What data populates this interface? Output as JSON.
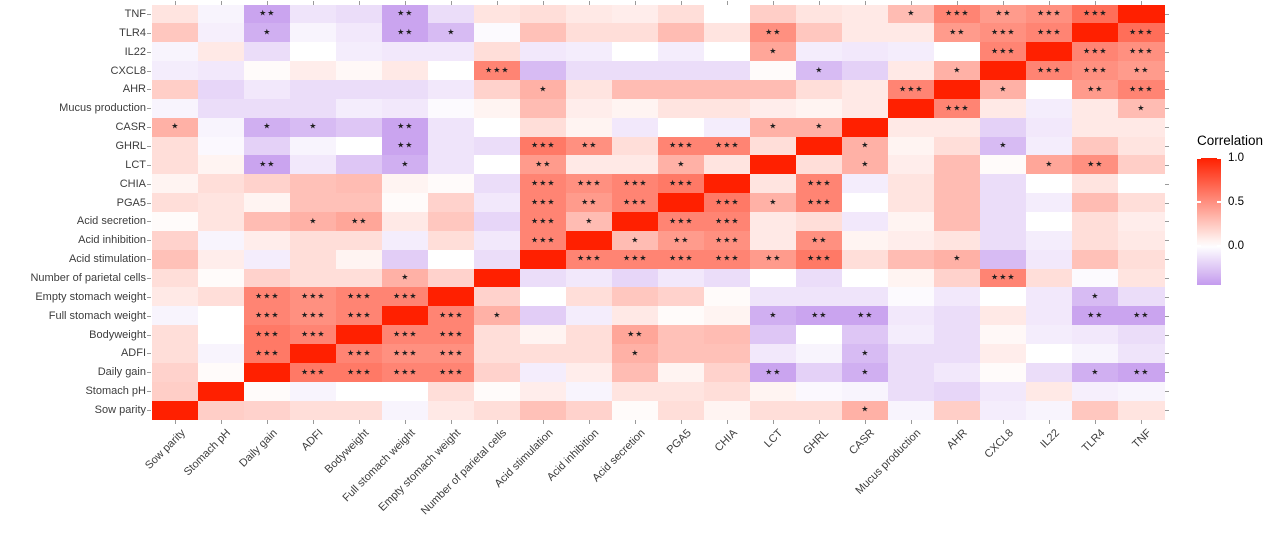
{
  "legend": {
    "title": "Correlation",
    "tick_labels": [
      "1.0",
      "0.5",
      "0.0"
    ],
    "tick_values": [
      1.0,
      0.5,
      0.0
    ],
    "max_value": 1.0,
    "min_value": -0.44
  },
  "colors": {
    "high": "#FF2000",
    "mid": "#FFFFFF",
    "low": "#7A1BD8",
    "axis_text": "#3d3d3d",
    "axis_tick": "#9a9a9a",
    "star": "#1f1f1f",
    "background": "#ffffff"
  },
  "chart_data": {
    "type": "heatmap",
    "title": "",
    "xlabel": "",
    "ylabel": "",
    "legend_position": "right",
    "grid": false,
    "star_glyph": "★",
    "variables": [
      "Sow parity",
      "Stomach pH",
      "Daily gain",
      "ADFI",
      "Bodyweight",
      "Full stomach weight",
      "Empty stomach weight",
      "Number of parietal cells",
      "Acid stimulation",
      "Acid inhibition",
      "Acid secretion",
      "PGA5",
      "CHIA",
      "LCT",
      "GHRL",
      "CASR",
      "Mucus production",
      "AHR",
      "CXCL8",
      "IL22",
      "TLR4",
      "TNF"
    ],
    "y_order_top_to_bottom": [
      "TNF",
      "TLR4",
      "IL22",
      "CXCL8",
      "AHR",
      "Mucus production",
      "CASR",
      "GHRL",
      "LCT",
      "CHIA",
      "PGA5",
      "Acid secretion",
      "Acid inhibition",
      "Acid stimulation",
      "Number of parietal cells",
      "Empty stomach weight",
      "Full stomach weight",
      "Bodyweight",
      "ADFI",
      "Daily gain",
      "Stomach pH",
      "Sow parity"
    ],
    "matrix": [
      [
        1,
        0.22,
        0.2,
        0.15,
        0.15,
        -0.05,
        0.1,
        0.15,
        0.28,
        0.2,
        0.02,
        0.15,
        0.05,
        0.15,
        0.15,
        0.35,
        -0.05,
        0.22,
        -0.08,
        -0.05,
        0.25,
        0.12
      ],
      [
        0.22,
        1,
        0.02,
        -0.05,
        0,
        0,
        0.15,
        0.02,
        0.08,
        -0.05,
        0.12,
        0.12,
        0.15,
        0.05,
        -0.03,
        -0.05,
        -0.15,
        -0.18,
        -0.1,
        0.1,
        -0.07,
        -0.05
      ],
      [
        0.2,
        0.02,
        1,
        0.6,
        0.6,
        0.55,
        0.55,
        0.2,
        -0.08,
        0.08,
        0.3,
        0.05,
        0.2,
        -0.4,
        -0.2,
        -0.35,
        -0.15,
        -0.1,
        0.02,
        -0.15,
        -0.35,
        -0.4
      ],
      [
        0.15,
        -0.05,
        0.6,
        1,
        0.55,
        0.5,
        0.5,
        0.15,
        0.15,
        0.15,
        0.35,
        0.28,
        0.28,
        -0.1,
        -0.05,
        -0.3,
        -0.15,
        -0.15,
        0.08,
        0,
        -0.05,
        -0.12
      ],
      [
        0.15,
        0,
        0.6,
        0.55,
        1,
        0.55,
        0.55,
        0.15,
        0.05,
        0.15,
        0.4,
        0.28,
        0.3,
        -0.25,
        0,
        -0.25,
        -0.08,
        -0.15,
        0.03,
        -0.08,
        -0.1,
        -0.15
      ],
      [
        -0.05,
        0,
        0.55,
        0.5,
        0.55,
        1,
        0.55,
        0.35,
        -0.22,
        -0.08,
        0.1,
        0.02,
        0.05,
        -0.35,
        -0.4,
        -0.4,
        -0.1,
        -0.15,
        0.1,
        -0.1,
        -0.4,
        -0.4
      ],
      [
        0.1,
        0.15,
        0.55,
        0.5,
        0.55,
        0.55,
        1,
        0.2,
        0,
        0.15,
        0.25,
        0.2,
        0.02,
        -0.12,
        -0.12,
        -0.12,
        -0.02,
        -0.1,
        0,
        -0.1,
        -0.3,
        -0.15
      ],
      [
        0.15,
        0.02,
        0.2,
        0.15,
        0.15,
        0.35,
        0.2,
        1,
        -0.15,
        -0.1,
        -0.18,
        -0.1,
        -0.15,
        0,
        -0.15,
        0,
        0.05,
        0.2,
        0.55,
        0.15,
        -0.02,
        0.12
      ],
      [
        0.28,
        0.08,
        -0.08,
        0.15,
        0.05,
        -0.22,
        0,
        -0.15,
        1,
        0.55,
        0.55,
        0.55,
        0.55,
        0.45,
        0.6,
        0.15,
        0.3,
        0.35,
        -0.3,
        -0.1,
        0.28,
        0.15
      ],
      [
        0.2,
        -0.05,
        0.08,
        0.15,
        0.15,
        -0.08,
        0.15,
        -0.1,
        0.55,
        1,
        0.3,
        0.45,
        0.5,
        0.1,
        0.5,
        0.05,
        0.08,
        0.12,
        -0.15,
        -0.08,
        0.15,
        0.1
      ],
      [
        0.02,
        0.12,
        0.3,
        0.35,
        0.4,
        0.1,
        0.25,
        -0.18,
        0.55,
        0.3,
        1,
        0.55,
        0.55,
        0.1,
        0.15,
        -0.1,
        0.05,
        0.3,
        -0.15,
        0,
        0.15,
        0.08
      ],
      [
        0.15,
        0.12,
        0.05,
        0.28,
        0.28,
        0.02,
        0.2,
        -0.1,
        0.55,
        0.45,
        0.55,
        1,
        0.6,
        0.35,
        0.55,
        0,
        0.12,
        0.3,
        -0.15,
        -0.08,
        0.3,
        0.15
      ],
      [
        0.05,
        0.15,
        0.2,
        0.28,
        0.3,
        0.05,
        0.02,
        -0.15,
        0.55,
        0.5,
        0.55,
        0.6,
        1,
        0.12,
        0.55,
        -0.08,
        0.12,
        0.3,
        -0.15,
        0,
        0.12,
        0
      ],
      [
        0.15,
        0.05,
        -0.4,
        -0.1,
        -0.25,
        -0.35,
        -0.12,
        0,
        0.45,
        0.1,
        0.1,
        0.35,
        0.12,
        1,
        0.15,
        0.35,
        0.08,
        0.3,
        0.02,
        0.4,
        0.5,
        0.22
      ],
      [
        0.15,
        -0.03,
        -0.2,
        -0.05,
        0,
        -0.4,
        -0.12,
        -0.15,
        0.6,
        0.5,
        0.15,
        0.55,
        0.55,
        0.15,
        1,
        0.35,
        0.05,
        0.15,
        -0.3,
        -0.08,
        0.25,
        0.12
      ],
      [
        0.35,
        -0.05,
        -0.35,
        -0.3,
        -0.25,
        -0.4,
        -0.12,
        0,
        0.15,
        0.05,
        -0.1,
        0,
        -0.08,
        0.35,
        0.35,
        1,
        0.1,
        0.1,
        -0.2,
        -0.1,
        0.1,
        0.1
      ],
      [
        -0.05,
        -0.15,
        -0.15,
        -0.15,
        -0.08,
        -0.1,
        -0.02,
        0.05,
        0.3,
        0.08,
        0.05,
        0.12,
        0.12,
        0.08,
        0.05,
        0.1,
        1,
        0.55,
        0.1,
        -0.08,
        0.1,
        0.3
      ],
      [
        0.22,
        -0.18,
        -0.1,
        -0.15,
        -0.15,
        -0.15,
        -0.1,
        0.2,
        0.35,
        0.12,
        0.3,
        0.3,
        0.3,
        0.3,
        0.15,
        0.1,
        0.55,
        1,
        0.35,
        0,
        0.45,
        0.55
      ],
      [
        -0.08,
        -0.1,
        0.02,
        0.08,
        0.03,
        0.1,
        0,
        0.55,
        -0.3,
        -0.15,
        -0.15,
        -0.15,
        -0.15,
        0.02,
        -0.3,
        -0.2,
        0.1,
        0.35,
        1,
        0.55,
        0.5,
        0.45
      ],
      [
        -0.05,
        0.1,
        -0.15,
        0,
        -0.08,
        -0.1,
        -0.1,
        0.15,
        -0.1,
        -0.08,
        0,
        -0.08,
        0,
        0.4,
        -0.08,
        -0.1,
        -0.08,
        0,
        0.55,
        1,
        0.55,
        0.5
      ],
      [
        0.25,
        -0.07,
        -0.35,
        -0.05,
        -0.1,
        -0.4,
        -0.3,
        -0.02,
        0.28,
        0.15,
        0.15,
        0.3,
        0.12,
        0.5,
        0.25,
        0.1,
        0.1,
        0.45,
        0.5,
        0.55,
        1,
        0.65
      ],
      [
        0.12,
        -0.05,
        -0.4,
        -0.12,
        -0.15,
        -0.4,
        -0.15,
        0.12,
        0.15,
        0.1,
        0.08,
        0.15,
        0,
        0.22,
        0.12,
        0.1,
        0.3,
        0.55,
        0.45,
        0.5,
        0.65,
        1
      ]
    ],
    "significance": [
      [
        "",
        "",
        "",
        "",
        "",
        "",
        "",
        "",
        "",
        "",
        "",
        "",
        "",
        "",
        "",
        "*",
        "",
        "",
        "",
        "",
        "",
        ""
      ],
      [
        "",
        "",
        "",
        "",
        "",
        "",
        "",
        "",
        "",
        "",
        "",
        "",
        "",
        "",
        "",
        "",
        "",
        "",
        "",
        "",
        "",
        ""
      ],
      [
        "",
        "",
        "",
        "***",
        "***",
        "***",
        "***",
        "",
        "",
        "",
        "",
        "",
        "",
        "**",
        "",
        "*",
        "",
        "",
        "",
        "",
        "*",
        "**"
      ],
      [
        "",
        "",
        "***",
        "",
        "***",
        "***",
        "***",
        "",
        "",
        "",
        "*",
        "",
        "",
        "",
        "",
        "*",
        "",
        "",
        "",
        "",
        "",
        ""
      ],
      [
        "",
        "",
        "***",
        "***",
        "",
        "***",
        "***",
        "",
        "",
        "",
        "**",
        "",
        "",
        "",
        "",
        "",
        "",
        "",
        "",
        "",
        "",
        ""
      ],
      [
        "",
        "",
        "***",
        "***",
        "***",
        "",
        "***",
        "*",
        "",
        "",
        "",
        "",
        "",
        "*",
        "**",
        "**",
        "",
        "",
        "",
        "",
        "**",
        "**"
      ],
      [
        "",
        "",
        "***",
        "***",
        "***",
        "***",
        "",
        "",
        "",
        "",
        "",
        "",
        "",
        "",
        "",
        "",
        "",
        "",
        "",
        "",
        "*",
        ""
      ],
      [
        "",
        "",
        "",
        "",
        "",
        "*",
        "",
        "",
        "",
        "",
        "",
        "",
        "",
        "",
        "",
        "",
        "",
        "",
        "***",
        "",
        "",
        ""
      ],
      [
        "",
        "",
        "",
        "",
        "",
        "",
        "",
        "",
        "",
        "***",
        "***",
        "***",
        "***",
        "**",
        "***",
        "",
        "",
        "*",
        "",
        "",
        "",
        ""
      ],
      [
        "",
        "",
        "",
        "",
        "",
        "",
        "",
        "",
        "***",
        "",
        "*",
        "**",
        "***",
        "",
        "**",
        "",
        "",
        "",
        "",
        "",
        "",
        ""
      ],
      [
        "",
        "",
        "",
        "*",
        "**",
        "",
        "",
        "",
        "***",
        "*",
        "",
        "***",
        "***",
        "",
        "",
        "",
        "",
        "",
        "",
        "",
        "",
        ""
      ],
      [
        "",
        "",
        "",
        "",
        "",
        "",
        "",
        "",
        "***",
        "**",
        "***",
        "",
        "***",
        "*",
        "***",
        "",
        "",
        "",
        "",
        "",
        "",
        ""
      ],
      [
        "",
        "",
        "",
        "",
        "",
        "",
        "",
        "",
        "***",
        "***",
        "***",
        "***",
        "",
        "",
        "***",
        "",
        "",
        "",
        "",
        "",
        "",
        ""
      ],
      [
        "",
        "",
        "**",
        "",
        "",
        "*",
        "",
        "",
        "**",
        "",
        "",
        "*",
        "",
        "",
        "",
        "*",
        "",
        "",
        "",
        "*",
        "**",
        ""
      ],
      [
        "",
        "",
        "",
        "",
        "",
        "**",
        "",
        "",
        "***",
        "**",
        "",
        "***",
        "***",
        "",
        "",
        "*",
        "",
        "",
        "*",
        "",
        "",
        ""
      ],
      [
        "*",
        "",
        "*",
        "*",
        "",
        "**",
        "",
        "",
        "",
        "",
        "",
        "",
        "",
        "*",
        "*",
        "",
        "",
        "",
        "",
        "",
        "",
        ""
      ],
      [
        "",
        "",
        "",
        "",
        "",
        "",
        "",
        "",
        "",
        "",
        "",
        "",
        "",
        "",
        "",
        "",
        "",
        "***",
        "",
        "",
        "",
        "*"
      ],
      [
        "",
        "",
        "",
        "",
        "",
        "",
        "",
        "",
        "*",
        "",
        "",
        "",
        "",
        "",
        "",
        "",
        "***",
        "",
        "*",
        "",
        "**",
        "***"
      ],
      [
        "",
        "",
        "",
        "",
        "",
        "",
        "",
        "***",
        "",
        "",
        "",
        "",
        "",
        "",
        "*",
        "",
        "",
        "*",
        "",
        "***",
        "***",
        "**"
      ],
      [
        "",
        "",
        "",
        "",
        "",
        "",
        "",
        "",
        "",
        "",
        "",
        "",
        "",
        "*",
        "",
        "",
        "",
        "",
        "***",
        "",
        "***",
        "***"
      ],
      [
        "",
        "",
        "*",
        "",
        "",
        "**",
        "*",
        "",
        "",
        "",
        "",
        "",
        "",
        "**",
        "",
        "",
        "",
        "**",
        "***",
        "***",
        "",
        "***"
      ],
      [
        "",
        "",
        "**",
        "",
        "",
        "**",
        "",
        "",
        "",
        "",
        "",
        "",
        "",
        "",
        "",
        "",
        "*",
        "***",
        "**",
        "***",
        "***",
        ""
      ]
    ]
  }
}
